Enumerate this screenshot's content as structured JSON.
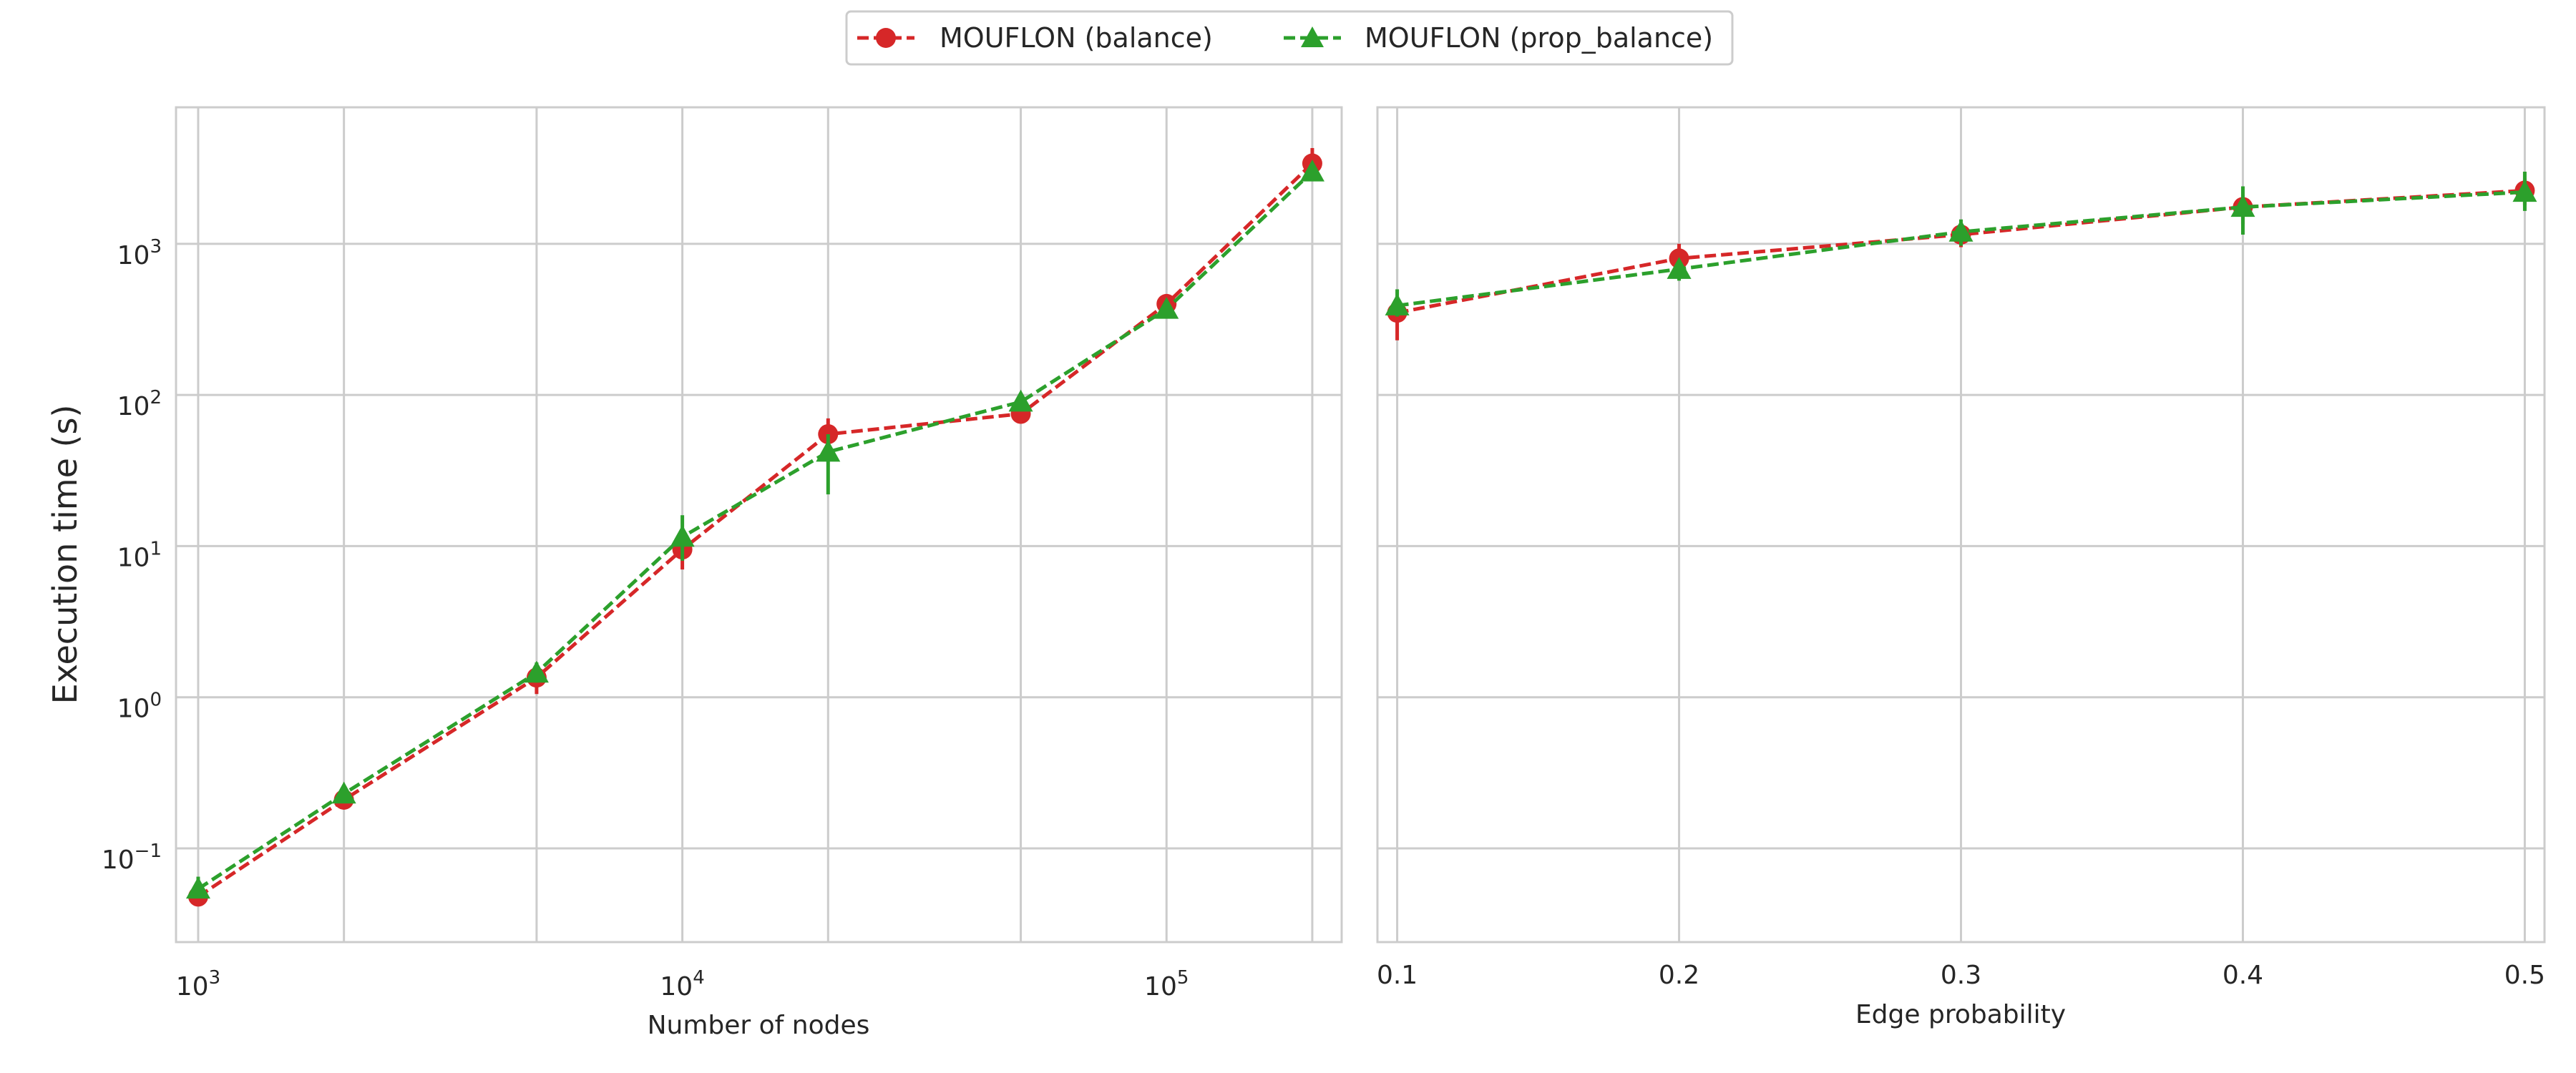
{
  "colors": {
    "balance": "#d62728",
    "prop_balance": "#2ca02c",
    "grid": "#cccccc",
    "frame": "#cccccc"
  },
  "legend": {
    "placement": "top-center",
    "entries": [
      {
        "label": "MOUFLON (balance)",
        "marker": "circle",
        "color": "#d62728"
      },
      {
        "label": "MOUFLON (prop_balance)",
        "marker": "triangle",
        "color": "#2ca02c"
      }
    ]
  },
  "y_axis": {
    "label": "Execution time (s)",
    "scale": "log",
    "ticks": [
      {
        "value": 0.1,
        "base": "10",
        "exp": "−1"
      },
      {
        "value": 1,
        "base": "10",
        "exp": "0"
      },
      {
        "value": 10,
        "base": "10",
        "exp": "1"
      },
      {
        "value": 100,
        "base": "10",
        "exp": "2"
      },
      {
        "value": 1000,
        "base": "10",
        "exp": "3"
      }
    ]
  },
  "chart_data": [
    {
      "type": "line",
      "xlabel": "Number of nodes",
      "ylabel": "Execution time (s)",
      "xscale": "log",
      "yscale": "log",
      "xlim": [
        900,
        230000
      ],
      "ylim": [
        0.024,
        8000
      ],
      "grid": true,
      "x_ticks": [
        {
          "value": 1000,
          "base": "10",
          "exp": "3"
        },
        {
          "value": 10000,
          "base": "10",
          "exp": "4"
        },
        {
          "value": 100000,
          "base": "10",
          "exp": "5"
        }
      ],
      "x_minor_grid": [
        2000,
        5000,
        20000,
        50000,
        200000
      ],
      "x": [
        1000,
        2000,
        5000,
        10000,
        20000,
        50000,
        100000,
        200000
      ],
      "series": [
        {
          "name": "MOUFLON (balance)",
          "marker": "circle",
          "values": [
            0.048,
            0.21,
            1.35,
            9.5,
            55,
            75,
            400,
            3400
          ],
          "err_low": [
            0.043,
            0.19,
            1.05,
            7.0,
            50,
            72,
            360,
            2900
          ],
          "err_high": [
            0.053,
            0.23,
            1.6,
            12.5,
            70,
            78,
            450,
            4300
          ]
        },
        {
          "name": "MOUFLON (prop_balance)",
          "marker": "triangle",
          "values": [
            0.054,
            0.23,
            1.45,
            11.5,
            42,
            90,
            370,
            3000
          ],
          "err_low": [
            0.048,
            0.21,
            1.25,
            8.0,
            22,
            87,
            340,
            2700
          ],
          "err_high": [
            0.065,
            0.25,
            1.7,
            16.0,
            55,
            93,
            410,
            3400
          ]
        }
      ]
    },
    {
      "type": "line",
      "xlabel": "Edge probability",
      "ylabel": "",
      "xscale": "linear",
      "yscale": "log",
      "xlim": [
        0.093,
        0.507
      ],
      "ylim": [
        0.024,
        8000
      ],
      "grid": true,
      "x_ticks": [
        {
          "value": 0.1,
          "text": "0.1"
        },
        {
          "value": 0.2,
          "text": "0.2"
        },
        {
          "value": 0.3,
          "text": "0.3"
        },
        {
          "value": 0.4,
          "text": "0.4"
        },
        {
          "value": 0.5,
          "text": "0.5"
        }
      ],
      "x": [
        0.1,
        0.2,
        0.3,
        0.4,
        0.5
      ],
      "series": [
        {
          "name": "MOUFLON (balance)",
          "marker": "circle",
          "values": [
            350,
            800,
            1150,
            1750,
            2250
          ],
          "err_low": [
            230,
            680,
            950,
            1350,
            1800
          ],
          "err_high": [
            450,
            1000,
            1350,
            2100,
            2700
          ]
        },
        {
          "name": "MOUFLON (prop_balance)",
          "marker": "triangle",
          "values": [
            390,
            680,
            1200,
            1750,
            2200
          ],
          "err_low": [
            330,
            570,
            970,
            1150,
            1650
          ],
          "err_high": [
            500,
            780,
            1450,
            2400,
            3000
          ]
        }
      ]
    }
  ]
}
